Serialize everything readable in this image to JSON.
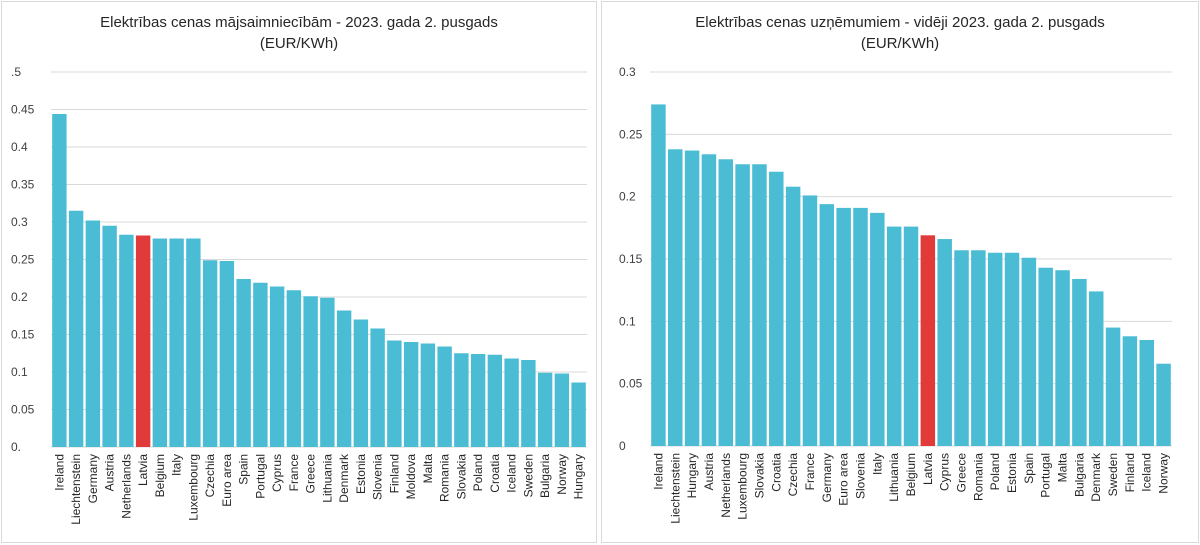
{
  "colors": {
    "bar": "#4abcd4",
    "highlight": "#e03a3a",
    "grid": "#d9d9d9",
    "text": "#262626"
  },
  "chart_data": [
    {
      "type": "bar",
      "title": "Elektrības cenas mājsaimniecībām - 2023. gada 2. pusgads",
      "subtitle": "(EUR/KWh)",
      "ylim": [
        0,
        0.5
      ],
      "yticks": [
        "0.",
        "0.05",
        "0.1",
        "0.15",
        "0.2",
        "0.25",
        "0.3",
        "0.35",
        "0.4",
        "0.45",
        ".5"
      ],
      "highlight": "Latvia",
      "grid": true,
      "categories": [
        "Ireland",
        "Liechtenstein",
        "Germany",
        "Austria",
        "Netherlands",
        "Latvia",
        "Belgium",
        "Italy",
        "Luxembourg",
        "Czechia",
        "Euro area",
        "Spain",
        "Portugal",
        "Cyprus",
        "France",
        "Greece",
        "Lithuania",
        "Denmark",
        "Estonia",
        "Slovenia",
        "Finland",
        "Moldova",
        "Malta",
        "Romania",
        "Slovakia",
        "Poland",
        "Croatia",
        "Iceland",
        "Sweden",
        "Bulgaria",
        "Norway",
        "Hungary"
      ],
      "values": [
        0.444,
        0.315,
        0.302,
        0.295,
        0.283,
        0.282,
        0.278,
        0.278,
        0.278,
        0.249,
        0.248,
        0.224,
        0.219,
        0.214,
        0.209,
        0.201,
        0.199,
        0.182,
        0.17,
        0.158,
        0.142,
        0.14,
        0.138,
        0.134,
        0.125,
        0.124,
        0.123,
        0.118,
        0.116,
        0.099,
        0.098,
        0.086
      ]
    },
    {
      "type": "bar",
      "title": "Elektrības cenas uzņēmumiem - vidēji 2023. gada 2. pusgads",
      "subtitle": "(EUR/KWh)",
      "ylim": [
        0,
        0.3
      ],
      "yticks": [
        "0",
        "0.05",
        "0.1",
        "0.15",
        "0.2",
        "0.25",
        "0.3"
      ],
      "highlight": "Latvia",
      "grid": true,
      "categories": [
        "Ireland",
        "Liechtenstein",
        "Hungary",
        "Austria",
        "Netherlands",
        "Luxembourg",
        "Slovakia",
        "Croatia",
        "Czechia",
        "France",
        "Germany",
        "Euro area",
        "Slovenia",
        "Italy",
        "Lithuania",
        "Belgium",
        "Latvia",
        "Cyprus",
        "Greece",
        "Romania",
        "Poland",
        "Estonia",
        "Spain",
        "Portugal",
        "Malta",
        "Bulgaria",
        "Denmark",
        "Sweden",
        "Finland",
        "Iceland",
        "Norway"
      ],
      "values": [
        0.274,
        0.238,
        0.237,
        0.234,
        0.23,
        0.226,
        0.226,
        0.22,
        0.208,
        0.201,
        0.194,
        0.191,
        0.191,
        0.187,
        0.176,
        0.176,
        0.169,
        0.166,
        0.157,
        0.157,
        0.155,
        0.155,
        0.151,
        0.143,
        0.141,
        0.134,
        0.124,
        0.095,
        0.088,
        0.085,
        0.066
      ]
    }
  ]
}
